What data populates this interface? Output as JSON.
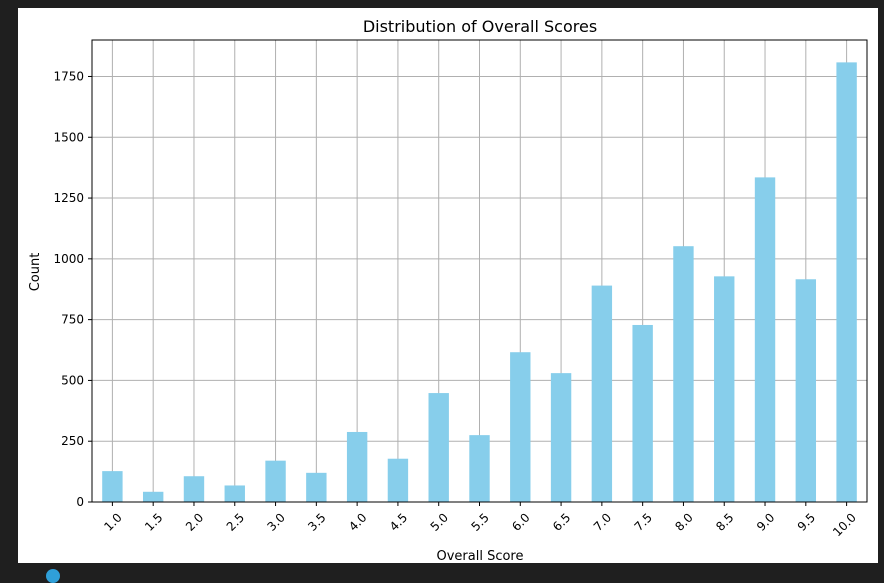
{
  "chart_data": {
    "type": "bar",
    "title": "Distribution of Overall Scores",
    "xlabel": "Overall Score",
    "ylabel": "Count",
    "categories": [
      "1.0",
      "1.5",
      "2.0",
      "2.5",
      "3.0",
      "3.5",
      "4.0",
      "4.5",
      "5.0",
      "5.5",
      "6.0",
      "6.5",
      "7.0",
      "7.5",
      "8.0",
      "8.5",
      "9.0",
      "9.5",
      "10.0"
    ],
    "values": [
      127,
      42,
      106,
      68,
      170,
      120,
      288,
      178,
      448,
      275,
      616,
      530,
      890,
      728,
      1052,
      928,
      1335,
      916,
      1808
    ],
    "ylim": [
      0,
      1900
    ],
    "yticks": [
      0,
      250,
      500,
      750,
      1000,
      1250,
      1500,
      1750
    ],
    "grid": true,
    "bar_color": "#87ceeb",
    "grid_color": "#b0b0b0",
    "background_color": "#ffffff",
    "page_background": "#1f1f1f"
  }
}
